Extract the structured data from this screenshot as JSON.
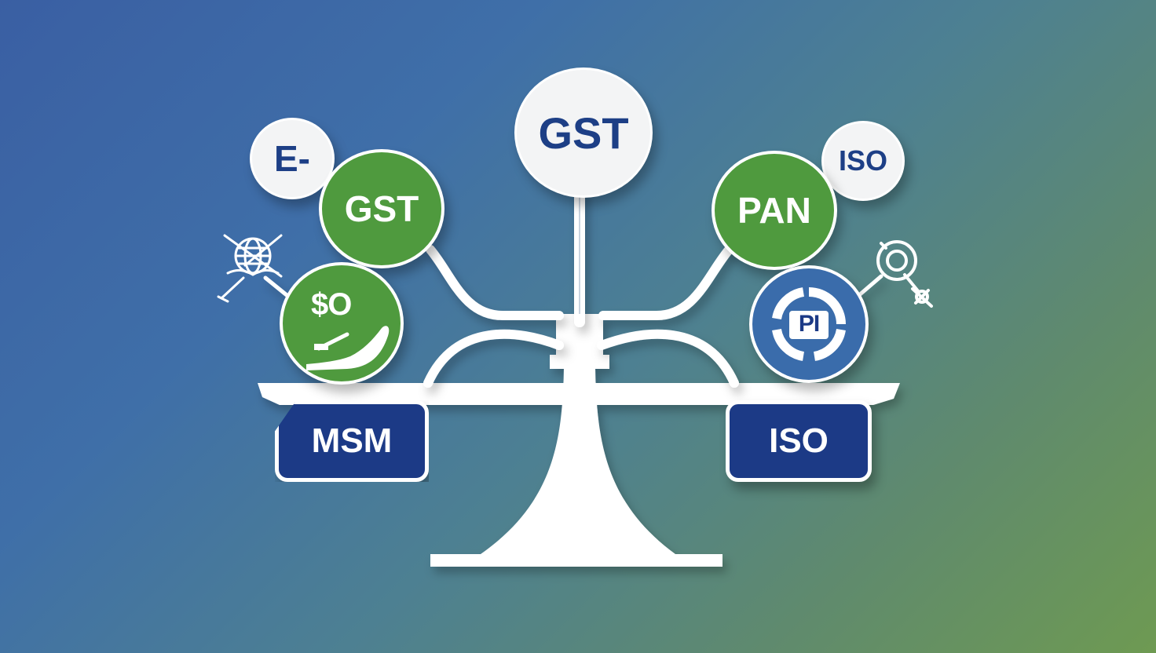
{
  "center_bubble": {
    "label": "GST"
  },
  "left_top_small_bubble": {
    "label": "E-"
  },
  "left_green_bubble": {
    "label": "GST"
  },
  "left_lower_bubble": {
    "label": "$O",
    "icon": "hand-money-icon"
  },
  "right_top_small_bubble": {
    "label": "ISO"
  },
  "right_green_bubble": {
    "label": "PAN"
  },
  "right_lower_bubble": {
    "label": "PI",
    "icon": "target-icon"
  },
  "left_pan": {
    "label": "MSM"
  },
  "right_pan": {
    "label": "ISO"
  },
  "left_outline_icon": "globe-network-icon",
  "right_outline_icon": "magnifier-gear-icon",
  "colors": {
    "navy": "#1c3a86",
    "green": "#4f9a3e",
    "blue": "#3a6cab",
    "white": "#ffffff",
    "bg_start": "#3a5fa3",
    "bg_end": "#6e9a52"
  }
}
